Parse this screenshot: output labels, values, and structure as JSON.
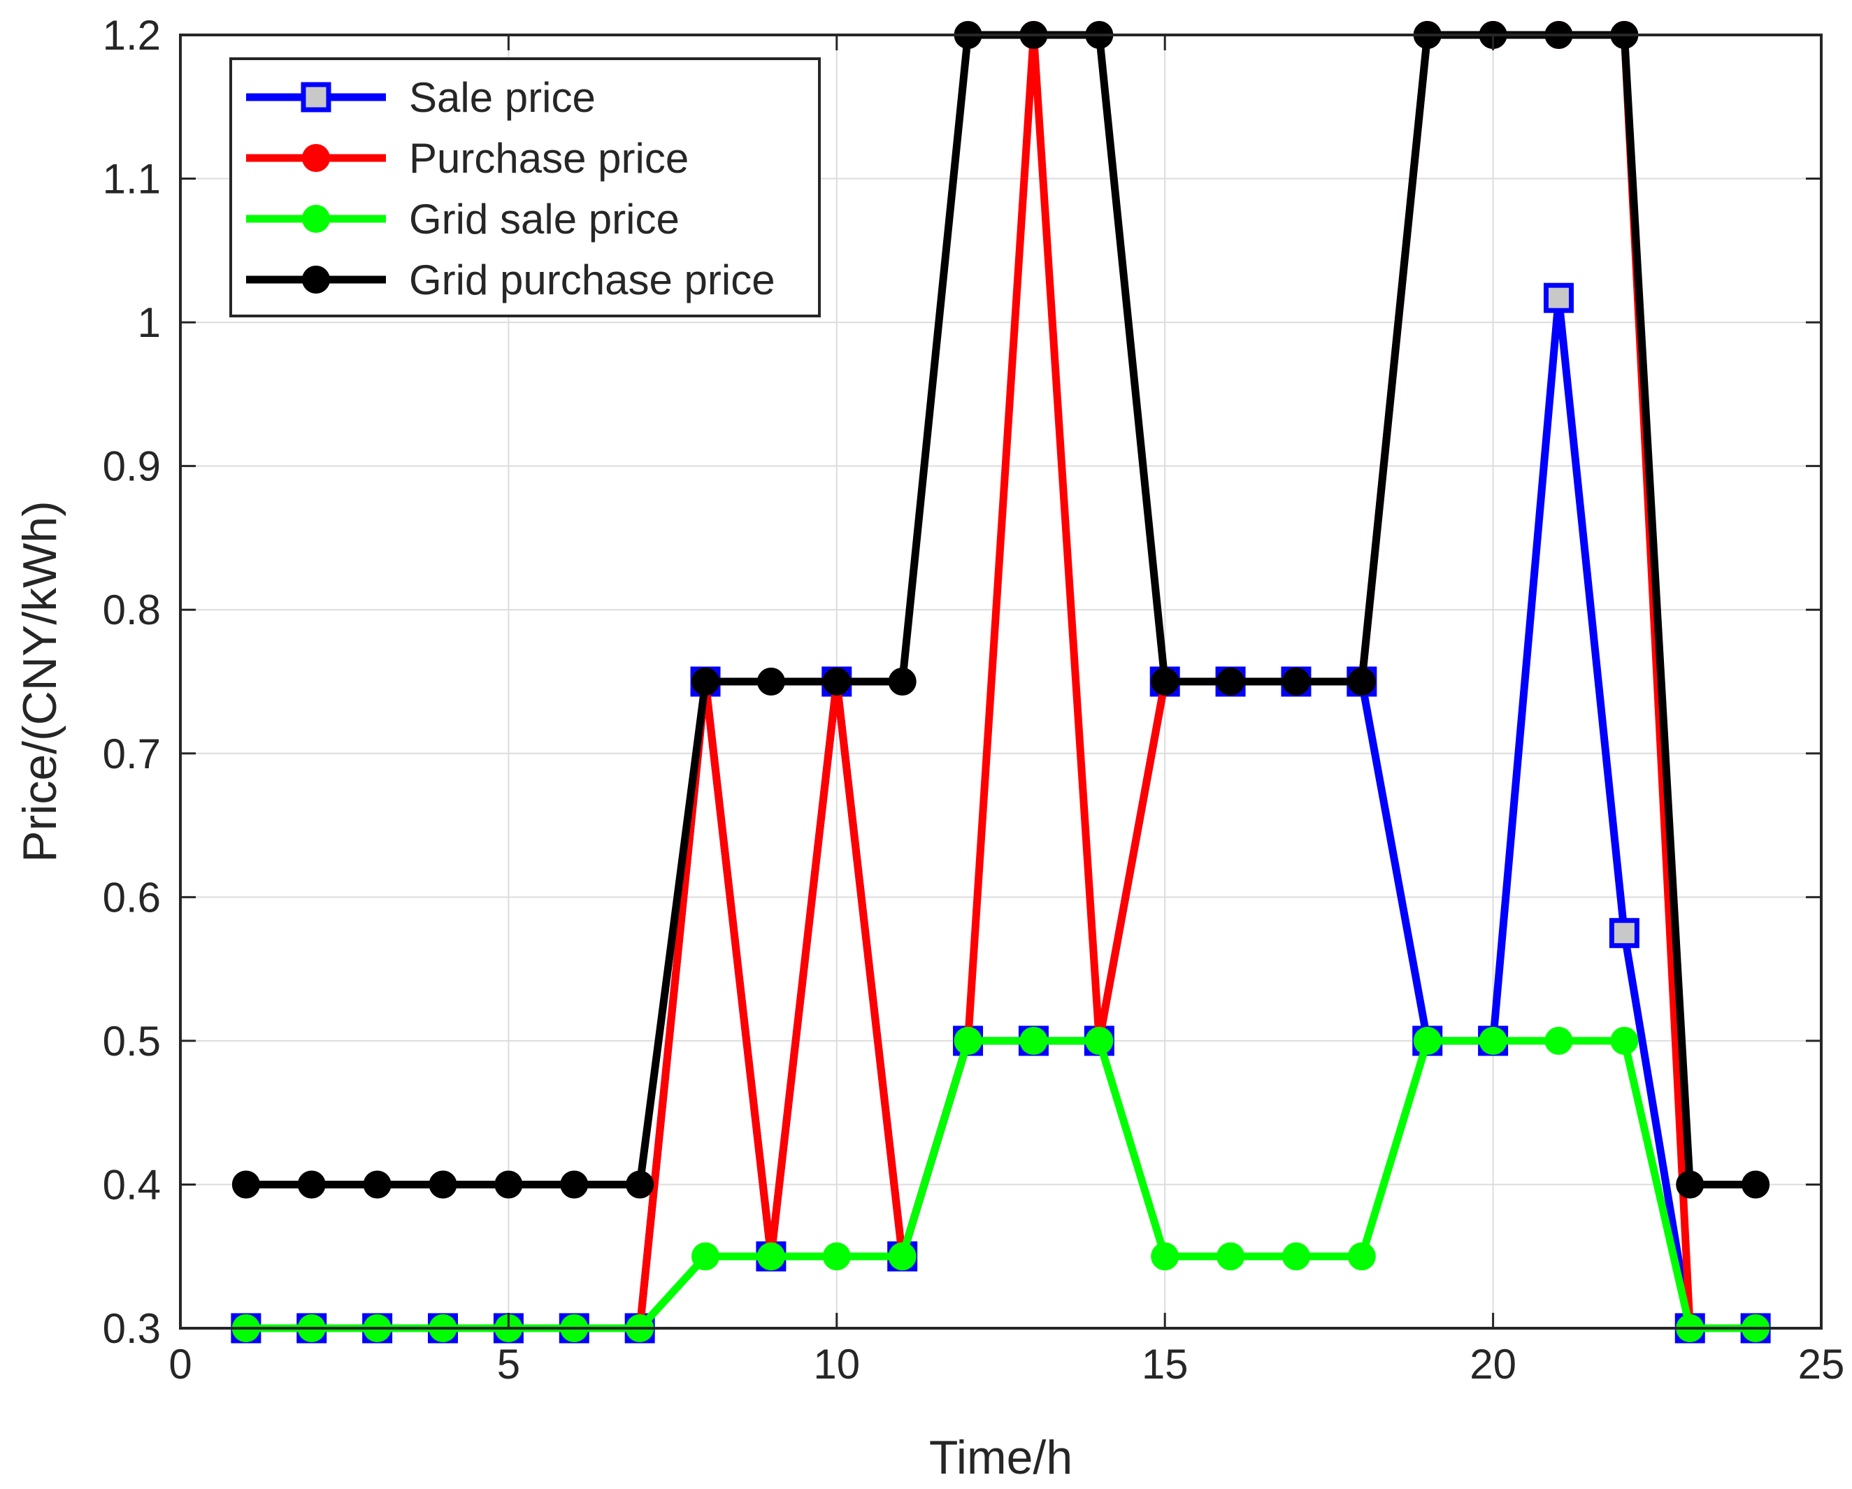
{
  "chart_data": {
    "type": "line",
    "xlabel": "Time/h",
    "ylabel": "Price/(CNY/kWh)",
    "xlim": [
      0,
      25
    ],
    "ylim": [
      0.3,
      1.2
    ],
    "xticks": [
      0,
      5,
      10,
      15,
      20,
      25
    ],
    "xtick_labels": [
      "0",
      "5",
      "10",
      "15",
      "20",
      "25"
    ],
    "yticks": [
      0.3,
      0.4,
      0.5,
      0.6,
      0.7,
      0.8,
      0.9,
      1.0,
      1.1,
      1.2
    ],
    "ytick_labels": [
      "0.3",
      "0.4",
      "0.5",
      "0.6",
      "0.7",
      "0.8",
      "0.9",
      "1",
      "1.1",
      "1.2"
    ],
    "grid": true,
    "legend_position": "top-left",
    "x": [
      1,
      2,
      3,
      4,
      5,
      6,
      7,
      8,
      9,
      10,
      11,
      12,
      13,
      14,
      15,
      16,
      17,
      18,
      19,
      20,
      21,
      22,
      23,
      24
    ],
    "series": [
      {
        "name": "Sale price",
        "color": "#0000ff",
        "marker": "square",
        "values": [
          0.3,
          0.3,
          0.3,
          0.3,
          0.3,
          0.3,
          0.3,
          0.75,
          0.35,
          0.75,
          0.35,
          0.5,
          0.5,
          0.5,
          0.75,
          0.75,
          0.75,
          0.75,
          0.5,
          0.5,
          1.017,
          0.575,
          0.3,
          0.3
        ]
      },
      {
        "name": "Purchase price",
        "color": "#ff0000",
        "marker": "circle",
        "values": [
          0.3,
          0.3,
          0.3,
          0.3,
          0.3,
          0.3,
          0.3,
          0.75,
          0.35,
          0.75,
          0.35,
          0.5,
          1.2,
          0.5,
          0.75,
          0.75,
          0.75,
          0.75,
          1.2,
          1.2,
          1.2,
          1.2,
          0.3,
          0.3
        ]
      },
      {
        "name": "Grid sale price",
        "color": "#00ff00",
        "marker": "circle",
        "values": [
          0.3,
          0.3,
          0.3,
          0.3,
          0.3,
          0.3,
          0.3,
          0.35,
          0.35,
          0.35,
          0.35,
          0.5,
          0.5,
          0.5,
          0.35,
          0.35,
          0.35,
          0.35,
          0.5,
          0.5,
          0.5,
          0.5,
          0.3,
          0.3
        ]
      },
      {
        "name": "Grid purchase price",
        "color": "#000000",
        "marker": "circle",
        "values": [
          0.4,
          0.4,
          0.4,
          0.4,
          0.4,
          0.4,
          0.4,
          0.75,
          0.75,
          0.75,
          0.75,
          1.2,
          1.2,
          1.2,
          0.75,
          0.75,
          0.75,
          0.75,
          1.2,
          1.2,
          1.2,
          1.2,
          0.4,
          0.4
        ]
      }
    ]
  }
}
